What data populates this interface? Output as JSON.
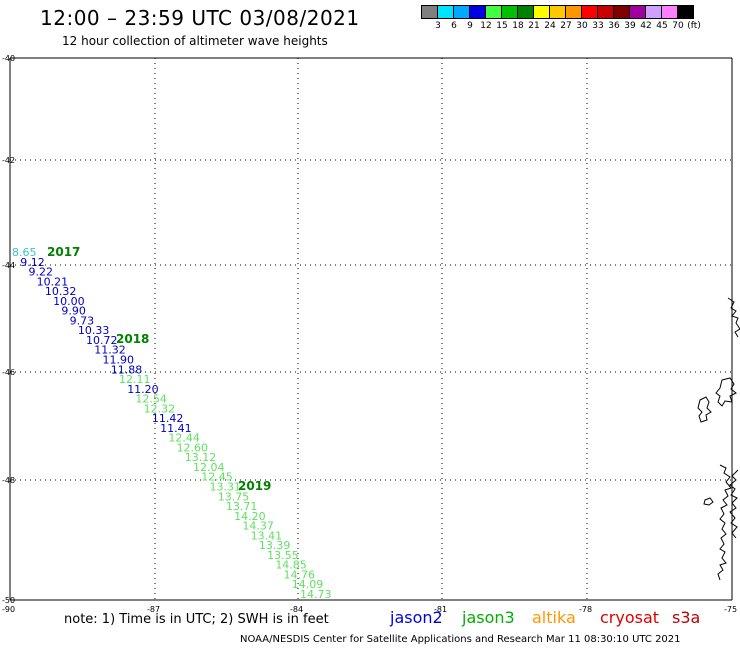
{
  "header": {
    "title": "12:00 – 23:59 UTC 03/08/2021",
    "subtitle": "12 hour collection of altimeter wave heights"
  },
  "colorbar": {
    "colors": [
      "#808080",
      "#00e5ff",
      "#00a8ff",
      "#0000e0",
      "#40ff40",
      "#00c000",
      "#008000",
      "#ffff00",
      "#ffc800",
      "#ff9600",
      "#ff0000",
      "#c80000",
      "#800000",
      "#a000a0",
      "#d0a0ff",
      "#ff80ff",
      "#000000"
    ],
    "labels": [
      "3",
      "6",
      "9",
      "12",
      "15",
      "18",
      "21",
      "24",
      "27",
      "30",
      "33",
      "36",
      "39",
      "42",
      "45",
      "70",
      "(ft)"
    ]
  },
  "axes": {
    "lat_labels": [
      "-40",
      "-42",
      "-44",
      "-46",
      "-48",
      "-50"
    ],
    "lon_labels": [
      "-90",
      "-87",
      "-84",
      "-81",
      "-78",
      "-75"
    ]
  },
  "tracks": {
    "jason2_color": "#0000c0",
    "jason3_color": "#00a000",
    "s3a_color": "#60e060",
    "cryosat_color": "#40c0d0",
    "points": [
      {
        "v": "8.65",
        "sat": "cryosat"
      },
      {
        "v": "9.12",
        "sat": "jason2"
      },
      {
        "v": "9.22",
        "sat": "jason2"
      },
      {
        "v": "10.21",
        "sat": "jason2"
      },
      {
        "v": "10.32",
        "sat": "jason2"
      },
      {
        "v": "10.00",
        "sat": "jason2"
      },
      {
        "v": "9.90",
        "sat": "jason2"
      },
      {
        "v": "9.73",
        "sat": "jason2"
      },
      {
        "v": "10.33",
        "sat": "jason2"
      },
      {
        "v": "10.72",
        "sat": "jason2"
      },
      {
        "v": "11.32",
        "sat": "jason2"
      },
      {
        "v": "11.90",
        "sat": "jason2"
      },
      {
        "v": "11.88",
        "sat": "jason2"
      },
      {
        "v": "12.11",
        "sat": "s3a"
      },
      {
        "v": "11.20",
        "sat": "jason2"
      },
      {
        "v": "12.54",
        "sat": "s3a"
      },
      {
        "v": "12.32",
        "sat": "s3a"
      },
      {
        "v": "11.42",
        "sat": "jason2"
      },
      {
        "v": "11.41",
        "sat": "jason2"
      },
      {
        "v": "12.44",
        "sat": "s3a"
      },
      {
        "v": "12.60",
        "sat": "s3a"
      },
      {
        "v": "13.12",
        "sat": "s3a"
      },
      {
        "v": "12.04",
        "sat": "s3a"
      },
      {
        "v": "12.45",
        "sat": "s3a"
      },
      {
        "v": "13.31",
        "sat": "s3a"
      },
      {
        "v": "13.75",
        "sat": "s3a"
      },
      {
        "v": "13.71",
        "sat": "s3a"
      },
      {
        "v": "14.20",
        "sat": "s3a"
      },
      {
        "v": "14.37",
        "sat": "s3a"
      },
      {
        "v": "13.41",
        "sat": "s3a"
      },
      {
        "v": "13.39",
        "sat": "s3a"
      },
      {
        "v": "13.55",
        "sat": "s3a"
      },
      {
        "v": "14.85",
        "sat": "s3a"
      },
      {
        "v": "14.76",
        "sat": "s3a"
      },
      {
        "v": "14.09",
        "sat": "s3a"
      },
      {
        "v": "14.73",
        "sat": "s3a"
      }
    ],
    "year_labels": [
      "2017",
      "2018",
      "2019"
    ]
  },
  "footer": {
    "note": "note:  1) Time is in UTC;  2) SWH is in feet",
    "credit": "NOAA/NESDIS Center for Satellite Applications and Research      Mar 11 08:30:10 UTC 2021"
  },
  "legend": [
    {
      "label": "jason2",
      "color": "#0000e0"
    },
    {
      "label": "jason3",
      "color": "#00b000"
    },
    {
      "label": "altika",
      "color": "#ff9600"
    },
    {
      "label": "cryosat",
      "color": "#e00000"
    },
    {
      "label": "s3a",
      "color": "#c00000"
    }
  ]
}
